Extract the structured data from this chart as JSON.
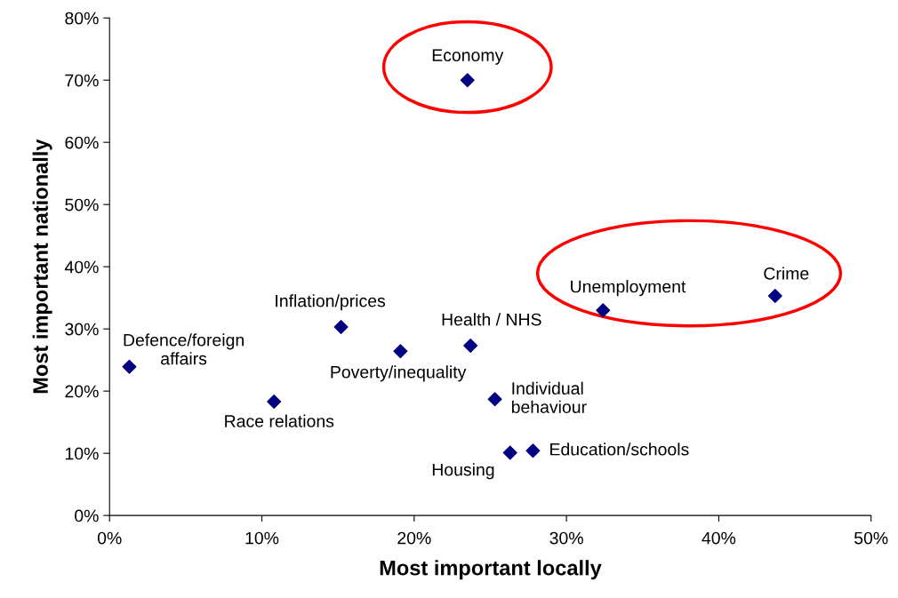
{
  "chart_data": {
    "type": "scatter",
    "xlabel": "Most important locally",
    "ylabel": "Most important nationally",
    "x": [
      23.5,
      43.7,
      32.4,
      15.2,
      23.7,
      19.1,
      1.3,
      10.8,
      25.3,
      26.3,
      27.8
    ],
    "values": [
      70,
      35.3,
      33.0,
      30.3,
      27.3,
      26.4,
      23.9,
      18.3,
      18.7,
      10.1,
      10.4
    ],
    "color": "#000080",
    "marker": "diamond",
    "grid": false,
    "xlim": [
      0,
      50
    ],
    "ylim": [
      0,
      80
    ],
    "xticks": [
      {
        "value": 0,
        "label": "0%"
      },
      {
        "value": 10,
        "label": "10%"
      },
      {
        "value": 20,
        "label": "20%"
      },
      {
        "value": 30,
        "label": "30%"
      },
      {
        "value": 40,
        "label": "40%"
      },
      {
        "value": 50,
        "label": "50%"
      }
    ],
    "yticks": [
      {
        "value": 0,
        "label": "0%"
      },
      {
        "value": 10,
        "label": "10%"
      },
      {
        "value": 20,
        "label": "20%"
      },
      {
        "value": 30,
        "label": "30%"
      },
      {
        "value": 40,
        "label": "40%"
      },
      {
        "value": 50,
        "label": "50%"
      },
      {
        "value": 60,
        "label": "60%"
      },
      {
        "value": 70,
        "label": "70%"
      },
      {
        "value": 80,
        "label": "80%"
      }
    ],
    "annotations": [
      {
        "text": "Economy",
        "x": 23.5,
        "y": 70
      },
      {
        "text": "Crime",
        "x": 43.7,
        "y": 35.3
      },
      {
        "text": "Unemployment",
        "x": 32.4,
        "y": 33.0
      },
      {
        "text": "Inflation/prices",
        "x": 15.2,
        "y": 30.3
      },
      {
        "text": "Health / NHS",
        "x": 23.7,
        "y": 27.3
      },
      {
        "text": "Poverty/inequality",
        "x": 19.1,
        "y": 26.4
      },
      {
        "text": "Defence/foreign\naffairs",
        "x": 1.3,
        "y": 23.9
      },
      {
        "text": "Race relations",
        "x": 10.8,
        "y": 18.3
      },
      {
        "text": "Individual\nbehaviour",
        "x": 25.3,
        "y": 18.7
      },
      {
        "text": "Housing",
        "x": 26.3,
        "y": 10.1
      },
      {
        "text": "Education/schools",
        "x": 27.8,
        "y": 10.4
      }
    ]
  }
}
